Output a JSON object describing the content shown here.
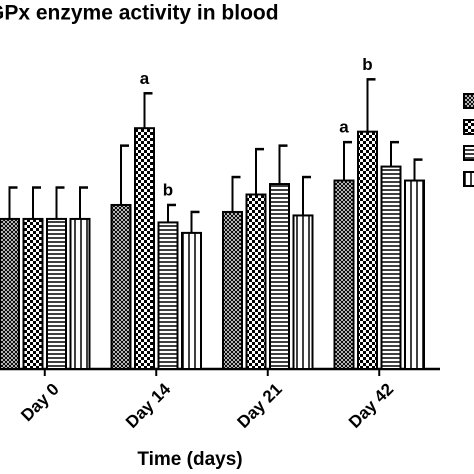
{
  "chart_data": {
    "type": "bar",
    "title": "GPx enzyme activity in blood",
    "x_label": "Time (days)",
    "categories": [
      "Day 0",
      "Day 14",
      "Day 21",
      "Day 42"
    ],
    "ylim": [
      0,
      100
    ],
    "series": [
      {
        "color": "#000000",
        "pattern": "crosshatch",
        "values": [
          43,
          47,
          45,
          54
        ],
        "errors": [
          9,
          17,
          10,
          11
        ]
      },
      {
        "color": "#000000",
        "pattern": "checker",
        "values": [
          43,
          69,
          50,
          68
        ],
        "errors": [
          9,
          10,
          13,
          15
        ]
      },
      {
        "color": "#000000",
        "pattern": "hstripes",
        "values": [
          43,
          42,
          53,
          58
        ],
        "errors": [
          9,
          5,
          11,
          7
        ]
      },
      {
        "color": "#000000",
        "pattern": "vstripes",
        "values": [
          43,
          39,
          44,
          54
        ],
        "errors": [
          9,
          6,
          11,
          6
        ]
      }
    ],
    "annotations": [
      {
        "text": "a",
        "series": 1,
        "category": 1
      },
      {
        "text": "b",
        "series": 2,
        "category": 1
      },
      {
        "text": "a",
        "series": 0,
        "category": 3
      },
      {
        "text": "b",
        "series": 1,
        "category": 3
      }
    ]
  }
}
